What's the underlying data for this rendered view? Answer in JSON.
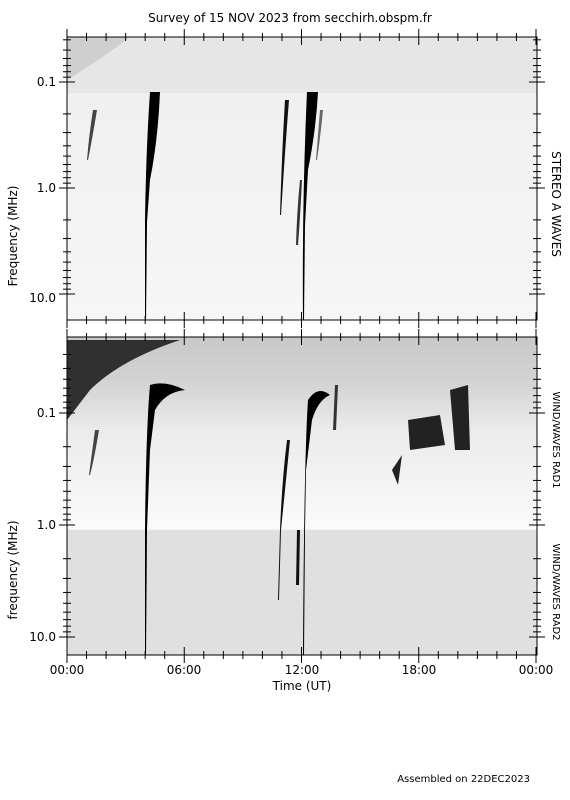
{
  "title": "Survey of 15 NOV 2023 from secchirh.obspm.fr",
  "panels": [
    {
      "y_axis_label": "Frequency (MHz)",
      "y_tick_labels": [
        "0.1",
        "1.0",
        "10.0"
      ],
      "right_labels": [
        "STEREO A WAVES"
      ]
    },
    {
      "y_axis_label": "frequency (MHz)",
      "y_tick_labels": [
        "0.1",
        "1.0",
        "10.0"
      ],
      "right_labels": [
        "WIND/WAVES RAD1",
        "WIND/WAVES RAD2"
      ]
    }
  ],
  "x_axis": {
    "tick_labels": [
      "00:00",
      "06:00",
      "12:00",
      "18:00",
      "00:00"
    ],
    "label": "Time (UT)"
  },
  "footer": "Assembled on 22DEC2023"
}
